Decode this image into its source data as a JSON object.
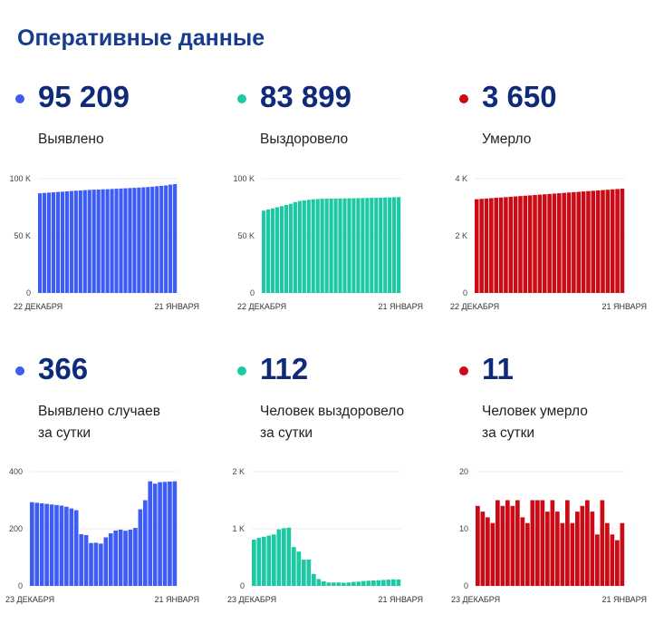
{
  "title": "Оперативные данные",
  "colors": {
    "blue": "#3d5cf5",
    "green": "#1cc9a3",
    "red": "#cc0a15"
  },
  "stats": [
    {
      "value": "95 209",
      "label": "Выявлено",
      "color": "#3d5cf5"
    },
    {
      "value": "83 899",
      "label": "Выздоровело",
      "color": "#1cc9a3"
    },
    {
      "value": "3 650",
      "label": "Умерло",
      "color": "#cc0a15"
    },
    {
      "value": "366",
      "label": "Выявлено случаев",
      "label2": "за сутки",
      "color": "#3d5cf5"
    },
    {
      "value": "112",
      "label": "Человек выздоровело",
      "label2": "за сутки",
      "color": "#1cc9a3"
    },
    {
      "value": "11",
      "label": "Человек умерло",
      "label2": "за сутки",
      "color": "#cc0a15"
    }
  ],
  "chart_data": [
    {
      "type": "bar",
      "color": "#3d5cf5",
      "ylim": [
        0,
        100000
      ],
      "yticks": [
        {
          "v": 0,
          "t": "0"
        },
        {
          "v": 50000,
          "t": "50 K"
        },
        {
          "v": 100000,
          "t": "100 K"
        }
      ],
      "xlabels": [
        "22 ДЕКАБРЯ",
        "21 ЯНВАРЯ"
      ],
      "values": [
        87200,
        87500,
        87800,
        88100,
        88400,
        88600,
        88900,
        89200,
        89500,
        89700,
        90000,
        90200,
        90400,
        90500,
        90700,
        90800,
        91000,
        91200,
        91400,
        91600,
        91800,
        92000,
        92200,
        92400,
        92700,
        93000,
        93400,
        93700,
        94100,
        94800,
        95209
      ]
    },
    {
      "type": "bar",
      "color": "#1cc9a3",
      "ylim": [
        0,
        100000
      ],
      "yticks": [
        {
          "v": 0,
          "t": "0"
        },
        {
          "v": 50000,
          "t": "50 K"
        },
        {
          "v": 100000,
          "t": "100 K"
        }
      ],
      "xlabels": [
        "22 ДЕКАБРЯ",
        "21 ЯНВАРЯ"
      ],
      "values": [
        72000,
        73000,
        74000,
        75000,
        76000,
        77000,
        78000,
        79500,
        80500,
        81000,
        81500,
        82000,
        82200,
        82400,
        82500,
        82550,
        82600,
        82700,
        82750,
        82800,
        82850,
        82950,
        83000,
        83100,
        83200,
        83300,
        83400,
        83500,
        83600,
        83750,
        83899
      ]
    },
    {
      "type": "bar",
      "color": "#cc0a15",
      "ylim": [
        0,
        4000
      ],
      "yticks": [
        {
          "v": 0,
          "t": "0"
        },
        {
          "v": 2000,
          "t": "2 K"
        },
        {
          "v": 4000,
          "t": "4 K"
        }
      ],
      "xlabels": [
        "22 ДЕКАБРЯ",
        "21 ЯНВАРЯ"
      ],
      "values": [
        3280,
        3293,
        3305,
        3317,
        3330,
        3342,
        3354,
        3367,
        3379,
        3391,
        3404,
        3416,
        3428,
        3441,
        3453,
        3465,
        3478,
        3490,
        3502,
        3515,
        3527,
        3539,
        3552,
        3564,
        3576,
        3589,
        3601,
        3613,
        3626,
        3638,
        3650
      ]
    },
    {
      "type": "bar",
      "color": "#3d5cf5",
      "ylim": [
        0,
        400
      ],
      "yticks": [
        {
          "v": 0,
          "t": "0"
        },
        {
          "v": 200,
          "t": "200"
        },
        {
          "v": 400,
          "t": "400"
        }
      ],
      "xlabels": [
        "23 ДЕКАБРЯ",
        "21 ЯНВАРЯ"
      ],
      "values": [
        293,
        291,
        289,
        287,
        285,
        283,
        281,
        277,
        271,
        265,
        181,
        178,
        150,
        151,
        148,
        170,
        184,
        194,
        197,
        193,
        197,
        203,
        268,
        300,
        366,
        358,
        363,
        364,
        365,
        366
      ]
    },
    {
      "type": "bar",
      "color": "#1cc9a3",
      "ylim": [
        0,
        2000
      ],
      "yticks": [
        {
          "v": 0,
          "t": "0"
        },
        {
          "v": 1000,
          "t": "1 K"
        },
        {
          "v": 2000,
          "t": "2 K"
        }
      ],
      "xlabels": [
        "23 ДЕКАБРЯ",
        "21 ЯНВАРЯ"
      ],
      "values": [
        810,
        840,
        860,
        880,
        900,
        990,
        1010,
        1020,
        680,
        600,
        460,
        460,
        210,
        120,
        80,
        60,
        60,
        60,
        55,
        60,
        70,
        75,
        85,
        90,
        95,
        100,
        105,
        110,
        115,
        112
      ]
    },
    {
      "type": "bar",
      "color": "#cc0a15",
      "ylim": [
        0,
        20
      ],
      "yticks": [
        {
          "v": 0,
          "t": "0"
        },
        {
          "v": 10,
          "t": "10"
        },
        {
          "v": 20,
          "t": "20"
        }
      ],
      "xlabels": [
        "23 ДЕКАБРЯ",
        "21 ЯНВАРЯ"
      ],
      "values": [
        14,
        13,
        12,
        11,
        15,
        14,
        15,
        14,
        15,
        12,
        11,
        15,
        15,
        15,
        13,
        15,
        13,
        11,
        15,
        11,
        13,
        14,
        15,
        13,
        9,
        15,
        11,
        9,
        8,
        11
      ]
    }
  ]
}
